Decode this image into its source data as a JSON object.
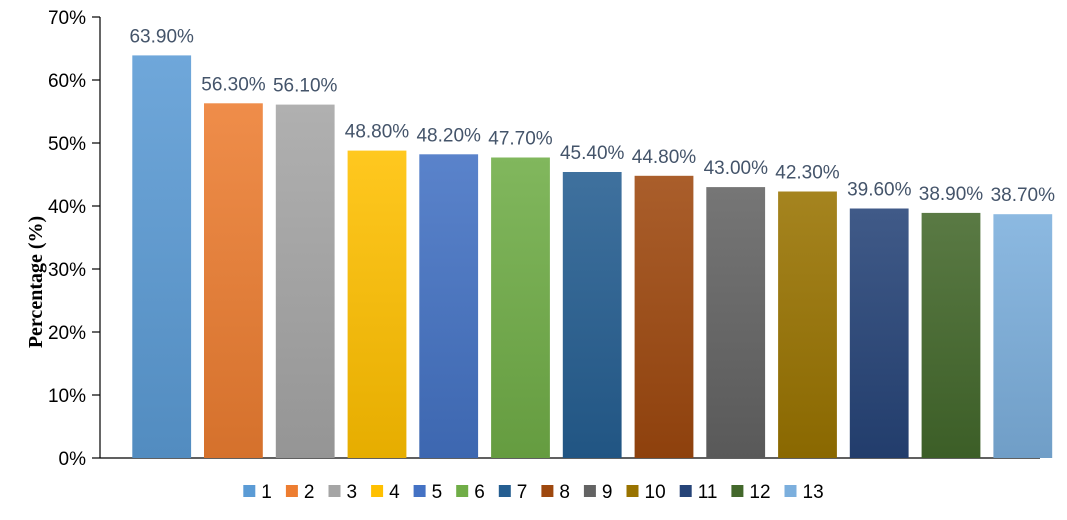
{
  "chart_data": {
    "type": "bar",
    "title": "",
    "xlabel": "",
    "ylabel": "Percentage (%)",
    "ylim": [
      0,
      70
    ],
    "y_ticks": [
      "0%",
      "10%",
      "20%",
      "30%",
      "40%",
      "50%",
      "60%",
      "70%"
    ],
    "y_tick_values": [
      0,
      10,
      20,
      30,
      40,
      50,
      60,
      70
    ],
    "grid": false,
    "legend_position": "bottom",
    "categories": [
      "1",
      "2",
      "3",
      "4",
      "5",
      "6",
      "7",
      "8",
      "9",
      "10",
      "11",
      "12",
      "13"
    ],
    "values": [
      63.9,
      56.3,
      56.1,
      48.8,
      48.2,
      47.7,
      45.4,
      44.8,
      43.0,
      42.3,
      39.6,
      38.9,
      38.7
    ],
    "data_labels": [
      "63.90%",
      "56.30%",
      "56.10%",
      "48.80%",
      "48.20%",
      "47.70%",
      "45.40%",
      "44.80%",
      "43.00%",
      "42.30%",
      "39.60%",
      "38.90%",
      "38.70%"
    ],
    "colors": [
      "#5B9BD5",
      "#ED7D31",
      "#A5A5A5",
      "#FFC000",
      "#4472C4",
      "#70AD47",
      "#255E91",
      "#9E480E",
      "#636363",
      "#997300",
      "#264478",
      "#43682B",
      "#7CAFDD"
    ],
    "legend": [
      "1",
      "2",
      "3",
      "4",
      "5",
      "6",
      "7",
      "8",
      "9",
      "10",
      "11",
      "12",
      "13"
    ]
  }
}
